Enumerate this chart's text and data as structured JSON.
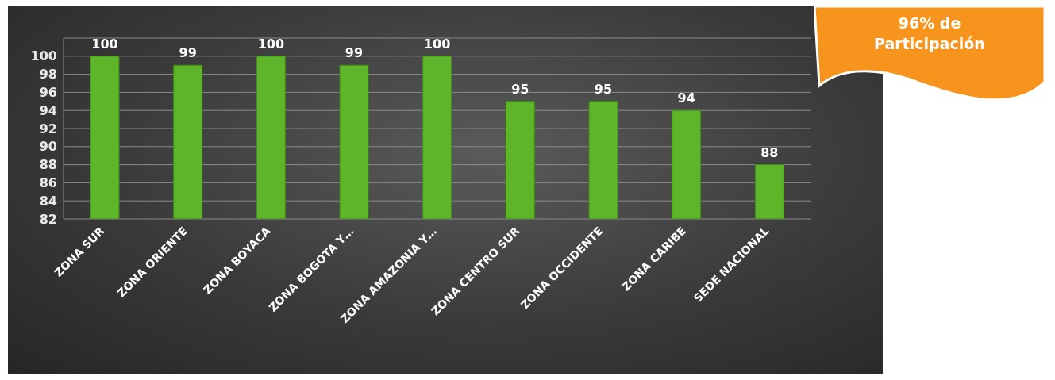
{
  "chart_data": {
    "type": "bar",
    "categories": [
      "ZONA SUR",
      "ZONA ORIENTE",
      "ZONA BOYACA",
      "ZONA BOGOTA Y…",
      "ZONA AMAZONIA Y…",
      "ZONA CENTRO SUR",
      "ZONA OCCIDENTE",
      "ZONA CARIBE",
      "SEDE NACIONAL"
    ],
    "values": [
      100,
      99,
      100,
      99,
      100,
      95,
      95,
      94,
      88
    ],
    "color": "#5fb52a",
    "ylim": [
      82,
      102
    ],
    "yticks": [
      82,
      84,
      86,
      88,
      90,
      92,
      94,
      96,
      98,
      100
    ],
    "grid": "y",
    "data_labels": true,
    "annotations": [
      "96% de Participación"
    ]
  }
}
